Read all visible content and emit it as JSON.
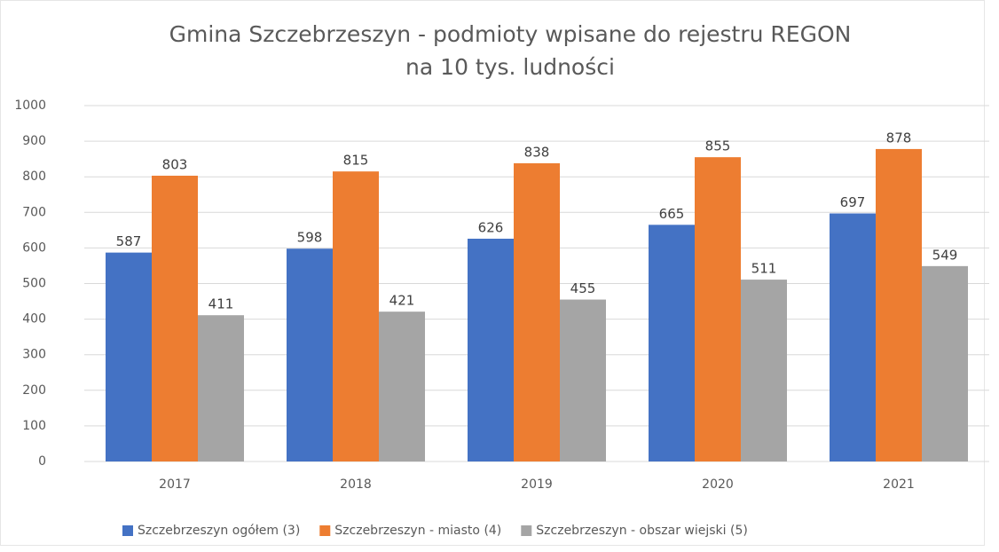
{
  "chart_data": {
    "type": "bar",
    "title": [
      "Gmina Szczebrzeszyn - podmioty wpisane do rejestru REGON",
      "na 10 tys. ludności"
    ],
    "categories": [
      "2017",
      "2018",
      "2019",
      "2020",
      "2021"
    ],
    "series": [
      {
        "name": "Szczebrzeszyn ogółem (3)",
        "color": "#4472c4",
        "values": [
          587,
          598,
          626,
          665,
          697
        ]
      },
      {
        "name": "Szczebrzeszyn - miasto (4)",
        "color": "#ed7d31",
        "values": [
          803,
          815,
          838,
          855,
          878
        ]
      },
      {
        "name": "Szczebrzeszyn - obszar wiejski (5)",
        "color": "#a5a5a5",
        "values": [
          411,
          421,
          455,
          511,
          549
        ]
      }
    ],
    "ylim": [
      0,
      1000
    ],
    "yticks": [
      0,
      100,
      200,
      300,
      400,
      500,
      600,
      700,
      800,
      900,
      1000
    ],
    "grid": true,
    "legend": "bottom"
  }
}
